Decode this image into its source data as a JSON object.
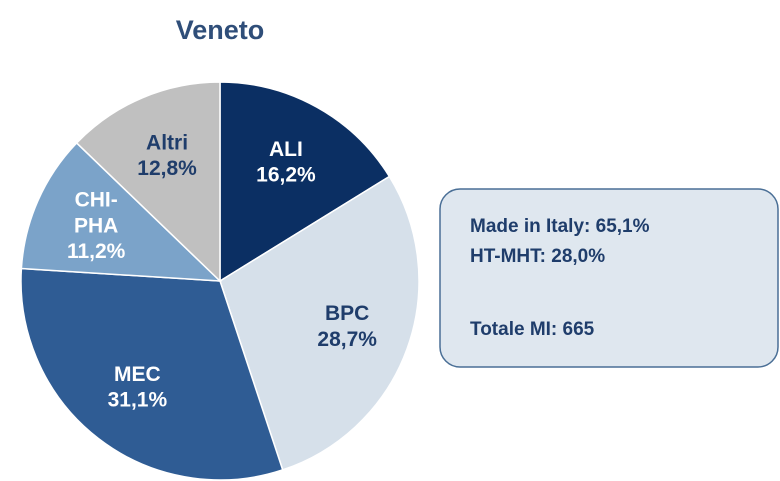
{
  "chart_data": {
    "type": "pie",
    "title": "Veneto",
    "categories": [
      "ALI",
      "BPC",
      "MEC",
      "CHI-PHA",
      "Altri"
    ],
    "values": [
      16.2,
      28.7,
      31.1,
      11.2,
      12.8
    ],
    "value_labels": [
      "16,2%",
      "28,7%",
      "31,1%",
      "11,2%",
      "12,8%"
    ],
    "colors": [
      "#0b2f63",
      "#d6e0ea",
      "#2f5c94",
      "#7ba3c9",
      "#c0c0c0"
    ],
    "label_colors": [
      "#ffffff",
      "#1f3d6b",
      "#ffffff",
      "#ffffff",
      "#1f3d6b"
    ],
    "annotations": [
      "Made in Italy: 65,1%",
      "HT-MHT: 28,0%",
      "Totale MI: 665"
    ]
  }
}
